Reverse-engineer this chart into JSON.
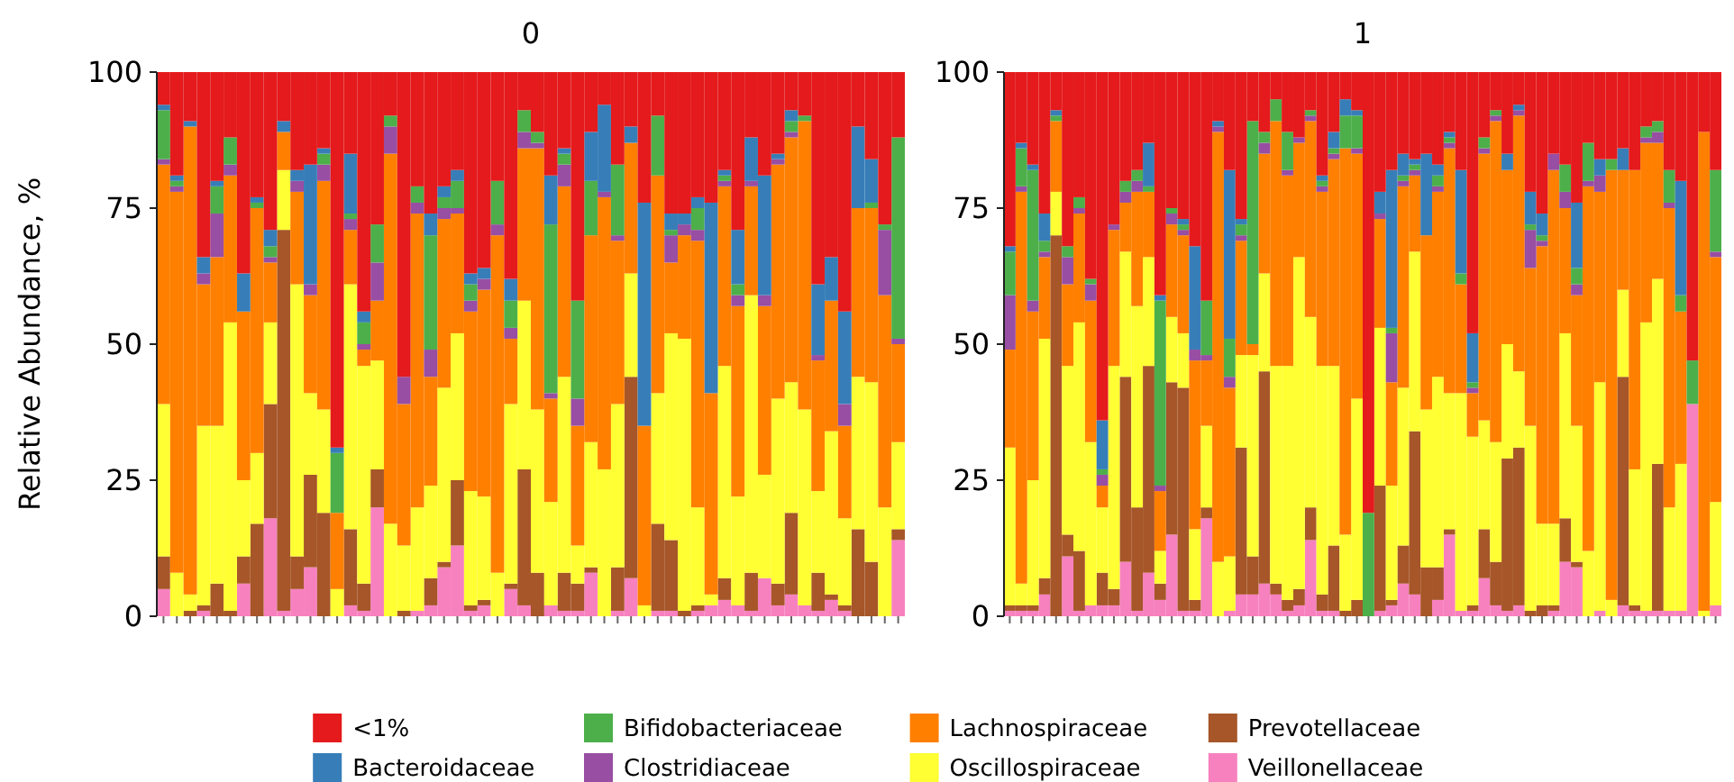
{
  "chart_data": [
    {
      "type": "bar",
      "title": "0",
      "ylabel": "Relative Abundance, %",
      "stacked": true,
      "legend": "bottom",
      "ylim": [
        0,
        100
      ],
      "yticks": [
        0,
        25,
        50,
        75,
        100
      ],
      "categories": [
        null,
        null,
        null,
        null,
        null,
        null,
        null,
        null,
        null,
        null,
        null,
        null,
        null,
        null,
        null,
        null,
        null,
        null,
        null,
        null,
        null,
        null,
        null,
        null,
        null,
        null,
        null,
        null,
        null,
        null,
        null,
        null,
        null,
        null,
        null,
        null,
        null,
        null,
        null,
        null,
        null,
        null,
        null,
        null,
        null,
        null,
        null,
        null,
        null,
        null,
        null,
        null,
        null,
        null,
        null,
        null
      ],
      "series": [
        {
          "name": "Veillonellaceae",
          "color": "#f781bf",
          "values": [
            5,
            0,
            0,
            1,
            0,
            0,
            6,
            0,
            18,
            1,
            5,
            9,
            0,
            0,
            2,
            1,
            20,
            0,
            0,
            1,
            2,
            9,
            13,
            1,
            2,
            0,
            5,
            2,
            0,
            2,
            1,
            1,
            8,
            0,
            1,
            7,
            0,
            1,
            1,
            0,
            1,
            2,
            3,
            2,
            1,
            7,
            2,
            4,
            2,
            1,
            3,
            1,
            0,
            0,
            0,
            14
          ]
        },
        {
          "name": "Prevotellaceae",
          "color": "#a65628",
          "values": [
            6,
            0,
            1,
            1,
            6,
            1,
            5,
            17,
            21,
            70,
            6,
            17,
            19,
            0,
            14,
            5,
            7,
            0,
            1,
            0,
            5,
            1,
            12,
            1,
            1,
            0,
            1,
            25,
            8,
            0,
            7,
            5,
            1,
            0,
            8,
            37,
            0,
            16,
            13,
            1,
            1,
            0,
            4,
            0,
            7,
            0,
            4,
            15,
            0,
            7,
            1,
            1,
            16,
            10,
            0,
            2
          ]
        },
        {
          "name": "Oscillospiraceae",
          "color": "#ffff33",
          "values": [
            28,
            8,
            3,
            33,
            29,
            53,
            14,
            13,
            15,
            11,
            50,
            15,
            19,
            5,
            45,
            40,
            20,
            17,
            12,
            19,
            17,
            32,
            27,
            21,
            19,
            8,
            33,
            31,
            30,
            19,
            36,
            7,
            23,
            27,
            30,
            19,
            2,
            24,
            38,
            50,
            18,
            2,
            39,
            20,
            51,
            19,
            34,
            24,
            36,
            15,
            30,
            16,
            28,
            33,
            20,
            16
          ]
        },
        {
          "name": "Lachnospiraceae",
          "color": "#ff7f00",
          "values": [
            44,
            70,
            86,
            26,
            31,
            27,
            31,
            45,
            11,
            7,
            17,
            18,
            42,
            14,
            10,
            3,
            11,
            68,
            26,
            54,
            20,
            31,
            22,
            33,
            38,
            62,
            12,
            28,
            48,
            19,
            35,
            22,
            38,
            50,
            30,
            24,
            33,
            40,
            13,
            19,
            49,
            37,
            33,
            35,
            20,
            31,
            43,
            45,
            53,
            24,
            24,
            17,
            31,
            32,
            39,
            18
          ]
        },
        {
          "name": "Clostridiaceae",
          "color": "#984ea3",
          "values": [
            1,
            1,
            0,
            2,
            8,
            2,
            0,
            0,
            1,
            0,
            2,
            2,
            3,
            0,
            2,
            1,
            7,
            5,
            5,
            2,
            5,
            2,
            1,
            2,
            2,
            2,
            2,
            3,
            1,
            1,
            4,
            5,
            0,
            1,
            1,
            0,
            0,
            0,
            5,
            2,
            2,
            0,
            1,
            2,
            1,
            2,
            1,
            1,
            0,
            1,
            0,
            4,
            0,
            0,
            12,
            1
          ]
        },
        {
          "name": "Bifidobacteriaceae",
          "color": "#4daf4a",
          "values": [
            9,
            1,
            0,
            0,
            5,
            5,
            0,
            1,
            2,
            0,
            0,
            0,
            2,
            11,
            1,
            4,
            7,
            2,
            0,
            3,
            21,
            2,
            5,
            3,
            0,
            8,
            5,
            4,
            2,
            31,
            2,
            18,
            10,
            0,
            13,
            0,
            0,
            11,
            1,
            0,
            4,
            0,
            1,
            2,
            0,
            0,
            0,
            2,
            1,
            0,
            0,
            0,
            0,
            1,
            1,
            37
          ]
        },
        {
          "name": "Bacteroidaceae",
          "color": "#377eb8",
          "values": [
            1,
            1,
            1,
            3,
            1,
            0,
            7,
            1,
            3,
            2,
            2,
            22,
            1,
            1,
            11,
            2,
            0,
            0,
            0,
            0,
            4,
            2,
            2,
            2,
            2,
            0,
            4,
            0,
            0,
            9,
            1,
            0,
            9,
            16,
            0,
            3,
            41,
            0,
            3,
            2,
            2,
            35,
            1,
            10,
            8,
            22,
            1,
            2,
            0,
            13,
            8,
            17,
            15,
            8,
            0,
            0
          ]
        },
        {
          "name": "<1%",
          "color": "#e41a1c",
          "values": [
            6,
            19,
            9,
            34,
            20,
            12,
            37,
            23,
            29,
            9,
            18,
            17,
            14,
            69,
            15,
            44,
            28,
            8,
            56,
            21,
            26,
            21,
            18,
            37,
            36,
            20,
            38,
            7,
            11,
            19,
            14,
            42,
            11,
            6,
            17,
            10,
            24,
            8,
            26,
            26,
            23,
            24,
            18,
            29,
            12,
            19,
            15,
            7,
            8,
            39,
            34,
            44,
            10,
            16,
            28,
            12
          ]
        }
      ]
    },
    {
      "type": "bar",
      "title": "1",
      "stacked": true,
      "ylim": [
        0,
        100
      ],
      "yticks": [
        0,
        25,
        50,
        75,
        100
      ],
      "categories": [
        null,
        null,
        null,
        null,
        null,
        null,
        null,
        null,
        null,
        null,
        null,
        null,
        null,
        null,
        null,
        null,
        null,
        null,
        null,
        null,
        null,
        null,
        null,
        null,
        null,
        null,
        null,
        null,
        null,
        null,
        null,
        null,
        null,
        null,
        null,
        null,
        null,
        null,
        null,
        null,
        null,
        null,
        null,
        null,
        null,
        null,
        null,
        null,
        null,
        null,
        null,
        null,
        null,
        null,
        null,
        null,
        null,
        null,
        null,
        null,
        null,
        null
      ],
      "series": [
        {
          "color": "#f781bf",
          "values": [
            1,
            1,
            1,
            4,
            0,
            11,
            1,
            2,
            2,
            2,
            10,
            1,
            8,
            3,
            15,
            1,
            1,
            18,
            0,
            1,
            4,
            4,
            6,
            4,
            1,
            2,
            14,
            1,
            1,
            0,
            0,
            0,
            1,
            2,
            6,
            4,
            0,
            3,
            15,
            1,
            1,
            7,
            2,
            1,
            2,
            0,
            0,
            1,
            10,
            9,
            0,
            1,
            0,
            2,
            1,
            1,
            1,
            1,
            1,
            39,
            0,
            2
          ]
        },
        {
          "color": "#a65628",
          "values": [
            1,
            1,
            1,
            3,
            70,
            4,
            11,
            0,
            6,
            3,
            34,
            19,
            38,
            3,
            28,
            41,
            2,
            2,
            0,
            0,
            27,
            7,
            39,
            2,
            2,
            3,
            6,
            3,
            12,
            1,
            3,
            0,
            23,
            1,
            7,
            30,
            9,
            6,
            1,
            0,
            1,
            9,
            8,
            28,
            29,
            1,
            2,
            1,
            8,
            1,
            0,
            0,
            0,
            42,
            1,
            0,
            27,
            0,
            0,
            0,
            0,
            0
          ]
        },
        {
          "color": "#ffff33",
          "values": [
            29,
            4,
            23,
            44,
            8,
            31,
            42,
            30,
            12,
            41,
            23,
            37,
            20,
            6,
            12,
            10,
            13,
            15,
            10,
            10,
            17,
            37,
            18,
            40,
            43,
            61,
            35,
            42,
            33,
            14,
            37,
            0,
            29,
            21,
            29,
            33,
            29,
            35,
            25,
            40,
            31,
            20,
            22,
            21,
            14,
            34,
            15,
            15,
            34,
            25,
            12,
            42,
            3,
            16,
            25,
            53,
            34,
            19,
            27,
            0,
            1,
            19
          ]
        },
        {
          "color": "#ff7f00",
          "values": [
            18,
            72,
            31,
            15,
            13,
            15,
            20,
            26,
            4,
            25,
            9,
            21,
            12,
            11,
            17,
            18,
            31,
            12,
            79,
            31,
            21,
            2,
            22,
            45,
            35,
            21,
            36,
            32,
            38,
            71,
            45,
            0,
            20,
            19,
            37,
            14,
            32,
            34,
            45,
            20,
            8,
            49,
            59,
            32,
            47,
            29,
            51,
            65,
            23,
            24,
            67,
            35,
            79,
            22,
            55,
            33,
            25,
            55,
            28,
            0,
            88,
            45
          ]
        },
        {
          "color": "#984ea3",
          "values": [
            10,
            1,
            2,
            1,
            0,
            5,
            1,
            3,
            2,
            1,
            2,
            2,
            0,
            1,
            2,
            1,
            2,
            1,
            1,
            2,
            1,
            0,
            2,
            0,
            1,
            1,
            1,
            1,
            1,
            0,
            1,
            0,
            1,
            9,
            1,
            1,
            0,
            1,
            1,
            0,
            1,
            1,
            1,
            0,
            1,
            7,
            1,
            3,
            3,
            2,
            1,
            3,
            0,
            0,
            0,
            1,
            2,
            1,
            0,
            0,
            0,
            1
          ]
        },
        {
          "color": "#4daf4a",
          "values": [
            8,
            7,
            24,
            2,
            1,
            2,
            2,
            1,
            1,
            0,
            2,
            2,
            1,
            34,
            1,
            1,
            0,
            10,
            0,
            7,
            2,
            41,
            2,
            4,
            7,
            0,
            1,
            1,
            1,
            6,
            6,
            19,
            0,
            1,
            1,
            1,
            0,
            2,
            1,
            2,
            1,
            2,
            1,
            0,
            0,
            1,
            1,
            0,
            5,
            3,
            7,
            0,
            2,
            0,
            0,
            2,
            2,
            6,
            3,
            8,
            0,
            15
          ]
        },
        {
          "color": "#377eb8",
          "values": [
            1,
            1,
            1,
            5,
            1,
            0,
            0,
            0,
            9,
            0,
            0,
            0,
            8,
            1,
            0,
            1,
            19,
            0,
            1,
            31,
            1,
            0,
            0,
            0,
            0,
            0,
            0,
            1,
            3,
            3,
            1,
            0,
            4,
            29,
            4,
            1,
            15,
            2,
            1,
            19,
            9,
            0,
            0,
            3,
            1,
            6,
            4,
            0,
            0,
            12,
            0,
            3,
            0,
            4,
            0,
            0,
            0,
            0,
            21,
            0,
            0,
            0
          ]
        },
        {
          "color": "#e41a1c",
          "values": [
            32,
            13,
            17,
            26,
            7,
            32,
            23,
            38,
            64,
            28,
            20,
            18,
            13,
            41,
            25,
            27,
            32,
            42,
            9,
            18,
            27,
            9,
            11,
            5,
            11,
            12,
            7,
            19,
            11,
            5,
            7,
            81,
            22,
            18,
            15,
            16,
            15,
            17,
            11,
            18,
            48,
            12,
            7,
            15,
            6,
            22,
            26,
            15,
            17,
            24,
            13,
            16,
            16,
            14,
            18,
            10,
            9,
            18,
            20,
            53,
            11,
            18
          ]
        }
      ]
    }
  ]
}
